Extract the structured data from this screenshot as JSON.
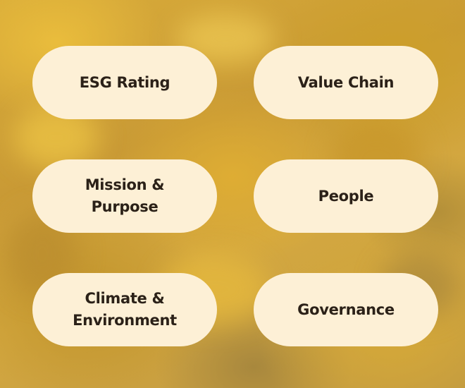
{
  "buttons": {
    "esg_rating": "ESG Rating",
    "value_chain": "Value Chain",
    "mission_purpose": "Mission & Purpose",
    "people": "People",
    "climate_environment": "Climate & Environment",
    "governance": "Governance"
  },
  "colors": {
    "pill_background": "#fdf0d6",
    "pill_text": "#2b2118",
    "background_tone": "#d4a840"
  }
}
